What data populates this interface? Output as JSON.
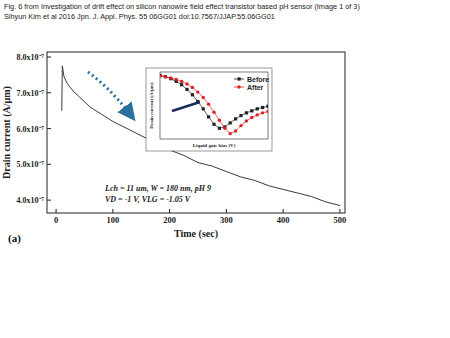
{
  "header": {
    "lines": [
      "Fig. 6 from Investigation of drift effect on silicon nanowire field effect transistor based pH sensor (Image 1 of 3)",
      "Sihyun Kim et al 2016 Jpn. J. Appl. Phys. 55 06GG01 doi:10.7567/JJAP.55.06GG01"
    ]
  },
  "chart_data": [
    {
      "type": "line",
      "x_label": "Time (sec)",
      "y_label": "Drain current (A/µm)",
      "annotations": [
        "Lch = 11 um, W = 180 nm, pH 9",
        "VD = -1 V, VLG = -1.05 V",
        "(a)"
      ],
      "x": [
        10,
        11,
        14,
        20,
        30,
        40,
        50,
        60,
        80,
        100,
        125,
        150,
        175,
        200,
        225,
        250,
        275,
        300,
        325,
        350,
        375,
        400,
        425,
        450,
        475,
        500
      ],
      "series": [
        {
          "color": "#3a3a3a",
          "values": [
            6.5e-07,
            7.75e-07,
            7.45e-07,
            7.25e-07,
            7.05e-07,
            6.9e-07,
            6.75e-07,
            6.6e-07,
            6.4e-07,
            6.2e-07,
            6e-07,
            5.8e-07,
            5.6e-07,
            5.4e-07,
            5.25e-07,
            5.05e-07,
            4.95e-07,
            4.8e-07,
            4.65e-07,
            4.55e-07,
            4.4e-07,
            4.3e-07,
            4.2e-07,
            4.1e-07,
            3.95e-07,
            3.85e-07
          ]
        }
      ],
      "xlim": [
        -16,
        509
      ],
      "xticks": [
        0,
        100,
        200,
        300,
        400,
        500
      ],
      "ylim": [
        3.64e-07,
        8.14e-07
      ],
      "yticks": [
        {
          "value": 4e-07,
          "label": "4.0x10⁻⁷"
        },
        {
          "value": 5e-07,
          "label": "5.0x10⁻⁷"
        },
        {
          "value": 6e-07,
          "label": "6.0x10⁻⁷"
        },
        {
          "value": 7e-07,
          "label": "7.0x10⁻⁷"
        },
        {
          "value": 8e-07,
          "label": "8.0x10⁻⁷"
        }
      ]
    },
    {
      "type": "line",
      "x_label": "Liquid gate bias (V)",
      "y_label": "Drain current (A/µm)",
      "tick_labels": false,
      "legend": "upper right",
      "x": [
        0,
        0.5,
        1,
        1.5,
        2,
        2.5,
        3,
        3.5,
        4,
        4.5,
        5,
        5.5,
        6,
        6.5,
        7,
        7.5,
        8,
        8.5,
        9,
        9.5,
        10
      ],
      "xlim": [
        0,
        10
      ],
      "ylim": [
        0,
        10
      ],
      "series": [
        {
          "name": "Before",
          "color": "#222222",
          "marker": "square",
          "values": [
            9.5,
            9.3,
            9.0,
            8.6,
            8.1,
            7.4,
            6.6,
            5.6,
            4.5,
            3.3,
            2.2,
            1.6,
            1.8,
            2.4,
            3.0,
            3.5,
            3.9,
            4.2,
            4.5,
            4.7,
            4.9
          ]
        },
        {
          "name": "After",
          "color": "#e02020",
          "marker": "circle",
          "values": [
            9.4,
            9.3,
            9.1,
            8.9,
            8.6,
            8.2,
            7.7,
            7.0,
            6.2,
            5.2,
            4.0,
            2.8,
            1.6,
            0.8,
            1.2,
            2.0,
            2.7,
            3.2,
            3.6,
            3.9,
            4.1
          ]
        }
      ]
    }
  ]
}
